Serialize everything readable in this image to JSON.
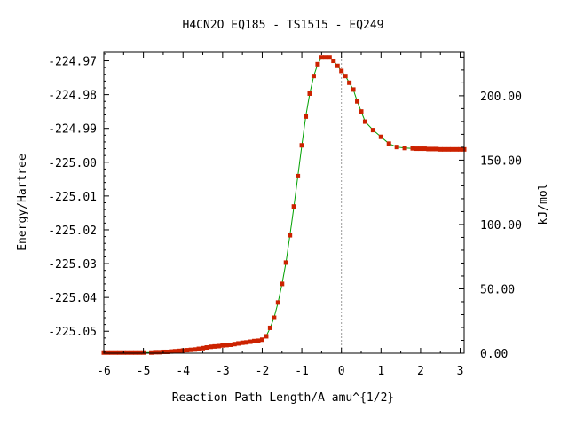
{
  "chart_data": {
    "type": "line",
    "title": "H4CN2O   EQ185 - TS1515 - EQ249",
    "xlabel": "Reaction Path Length/A amu^{1/2}",
    "ylabel": "Energy/Hartree",
    "y2label": "kJ/mol",
    "xlim": [
      -6.0,
      3.1
    ],
    "ylim": [
      -225.0565,
      -224.9675
    ],
    "y2lim": [
      0.0,
      233.7
    ],
    "xticks": [
      "-6",
      "-5",
      "-4",
      "-3",
      "-2",
      "-1",
      "0",
      "1",
      "2",
      "3"
    ],
    "yticks": [
      "-224.97",
      "-224.98",
      "-224.99",
      "-225.00",
      "-225.01",
      "-225.02",
      "-225.03",
      "-225.04",
      "-225.05"
    ],
    "y2ticks": [
      "0.00",
      "50.00",
      "100.00",
      "150.00",
      "200.00"
    ],
    "transition_state_x": 0.0,
    "grid": false,
    "legend": "none",
    "colors": {
      "line": "#00a000",
      "marker": "#cc2200",
      "ts_line": "#9a9a9a"
    },
    "series": [
      {
        "x": [
          -6.0,
          -5.9,
          -5.8,
          -5.7,
          -5.6,
          -5.5,
          -5.4,
          -5.3,
          -5.2,
          -5.1,
          -5.0,
          -4.8,
          -4.7,
          -4.6,
          -4.5,
          -4.4,
          -4.3,
          -4.2,
          -4.1,
          -4.0,
          -3.9,
          -3.8,
          -3.7,
          -3.6,
          -3.5,
          -3.4,
          -3.3,
          -3.2,
          -3.1,
          -3.0,
          -2.9,
          -2.8,
          -2.7,
          -2.6,
          -2.5,
          -2.4,
          -2.3,
          -2.2,
          -2.1,
          -2.0,
          -1.9,
          -1.8,
          -1.7,
          -1.6,
          -1.5,
          -1.4,
          -1.3,
          -1.2,
          -1.1,
          -1.0,
          -0.9,
          -0.8,
          -0.7,
          -0.6,
          -0.5,
          -0.4,
          -0.3,
          -0.2,
          -0.1,
          0.0,
          0.1,
          0.2,
          0.3,
          0.4,
          0.5,
          0.6,
          0.8,
          1.0,
          1.2,
          1.4,
          1.6,
          1.8,
          1.9,
          2.0,
          2.1,
          2.2,
          2.3,
          2.4,
          2.5,
          2.6,
          2.7,
          2.8,
          2.9,
          3.0,
          3.1
        ],
        "y": [
          -225.0563,
          -225.0563,
          -225.0563,
          -225.0563,
          -225.0563,
          -225.0563,
          -225.0563,
          -225.0563,
          -225.0563,
          -225.0563,
          -225.0563,
          -225.0563,
          -225.0562,
          -225.0562,
          -225.0561,
          -225.0561,
          -225.056,
          -225.0559,
          -225.0558,
          -225.0557,
          -225.0556,
          -225.0555,
          -225.0554,
          -225.0552,
          -225.055,
          -225.0548,
          -225.0546,
          -225.0545,
          -225.0544,
          -225.0542,
          -225.0541,
          -225.054,
          -225.0538,
          -225.0536,
          -225.0534,
          -225.0533,
          -225.0531,
          -225.0529,
          -225.0528,
          -225.0525,
          -225.0515,
          -225.049,
          -225.046,
          -225.0415,
          -225.036,
          -225.0297,
          -225.0216,
          -225.0131,
          -225.0041,
          -224.995,
          -224.9865,
          -224.9797,
          -224.9745,
          -224.971,
          -224.969,
          -224.969,
          -224.969,
          -224.97,
          -224.9715,
          -224.973,
          -224.9745,
          -224.9765,
          -224.9785,
          -224.982,
          -224.985,
          -224.988,
          -224.9905,
          -224.9925,
          -224.9945,
          -224.9955,
          -224.9958,
          -224.9959,
          -224.996,
          -224.996,
          -224.996,
          -224.9961,
          -224.9961,
          -224.9961,
          -224.9962,
          -224.9962,
          -224.9962,
          -224.9962,
          -224.9962,
          -224.9962,
          -224.9962
        ]
      }
    ]
  }
}
